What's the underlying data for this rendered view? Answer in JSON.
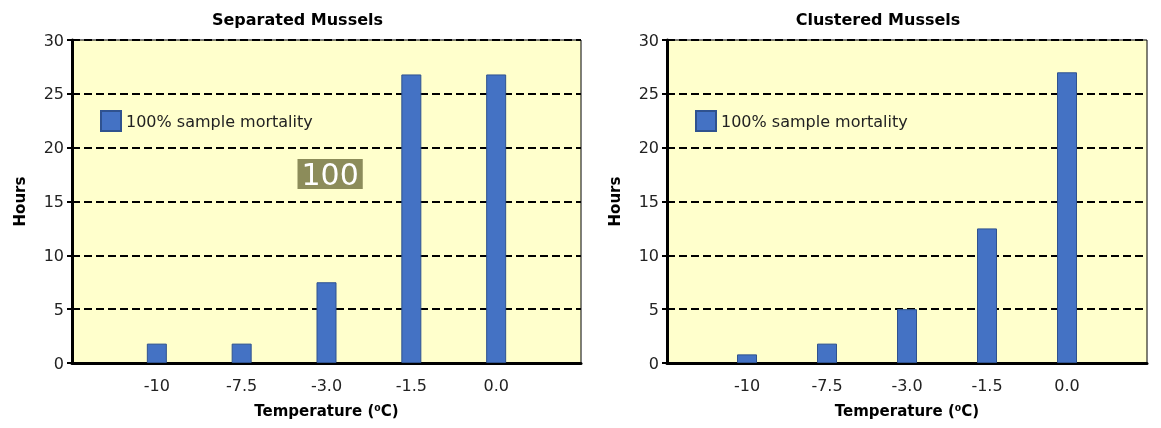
{
  "chart_data": [
    {
      "type": "bar",
      "title": "Separated Mussels",
      "xlabel": "Temperature (⁰C)",
      "ylabel": "Hours",
      "categories": [
        null,
        "-10",
        "-7.5",
        "-3.0",
        "-1.5",
        "0.0",
        null
      ],
      "series": [
        {
          "name": "100% sample mortality",
          "color": "#4472c4",
          "values": [
            null,
            1.8,
            1.8,
            7.5,
            26.8,
            26.8,
            null
          ]
        }
      ],
      "ylim": [
        0,
        30
      ],
      "yticks": [
        0,
        5,
        10,
        15,
        20,
        25,
        30
      ],
      "grid": "y",
      "line_style": "dashed",
      "legend": "top left",
      "annotations": [
        "100"
      ]
    },
    {
      "type": "bar",
      "title": "Clustered Mussels",
      "xlabel": "Temperature (⁰C)",
      "ylabel": "Hours",
      "categories": [
        null,
        "-10",
        "-7.5",
        "-3.0",
        "-1.5",
        "0.0",
        null
      ],
      "series": [
        {
          "name": "100% sample mortality",
          "color": "#4472c4",
          "values": [
            null,
            0.8,
            1.8,
            5.0,
            12.5,
            27.0,
            null
          ]
        }
      ],
      "ylim": [
        0,
        30
      ],
      "yticks": [
        0,
        5,
        10,
        15,
        20,
        25,
        30
      ],
      "grid": "y",
      "line_style": "dashed",
      "legend": "top left"
    }
  ]
}
